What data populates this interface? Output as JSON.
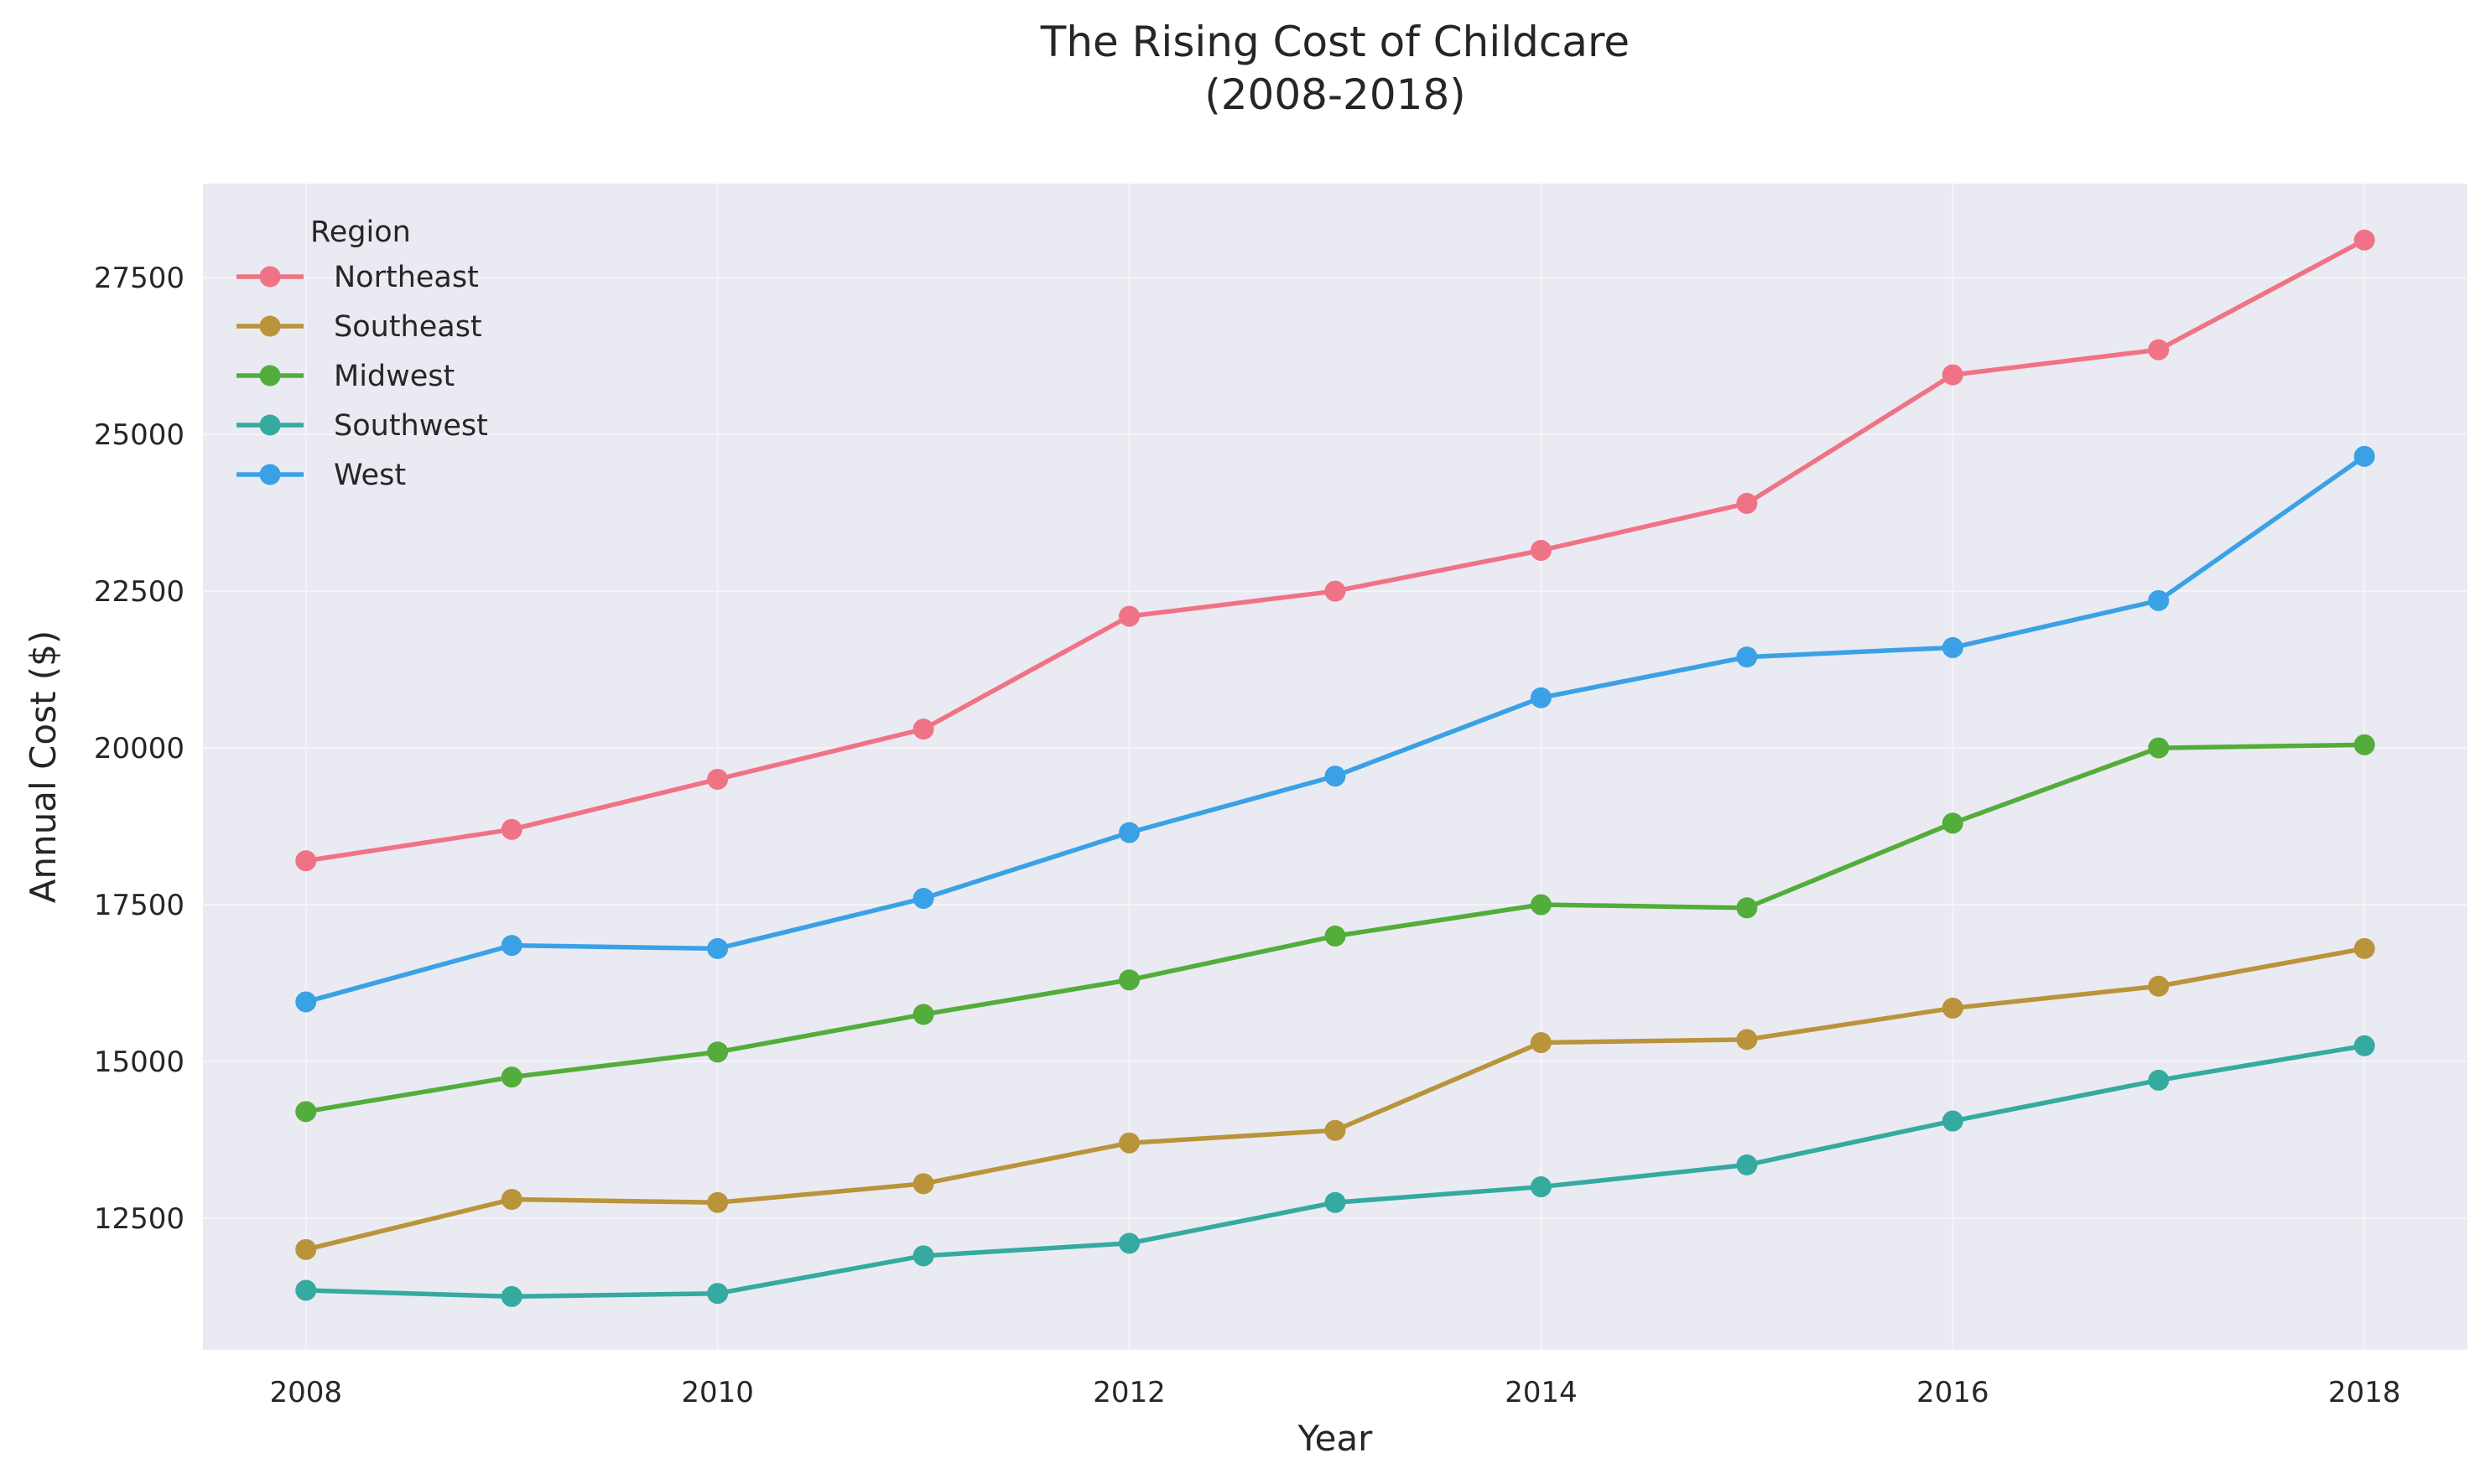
{
  "chart_data": {
    "type": "line",
    "title": "The Rising Cost of Childcare\n(2008-2018)",
    "xlabel": "Year",
    "ylabel": "Annual Cost ($)",
    "x": [
      2008,
      2009,
      2010,
      2011,
      2012,
      2013,
      2014,
      2015,
      2016,
      2017,
      2018
    ],
    "xlim": [
      2007.5,
      2018.5
    ],
    "ylim": [
      10400,
      29000
    ],
    "x_ticks": [
      2008,
      2010,
      2012,
      2014,
      2016,
      2018
    ],
    "y_ticks": [
      12500,
      15000,
      17500,
      20000,
      22500,
      25000,
      27500
    ],
    "grid": true,
    "legend": {
      "title": "Region",
      "placement": "top-left"
    },
    "series": [
      {
        "name": "Northeast",
        "color": "#f07385",
        "marker": "circle",
        "values": [
          18200,
          18700,
          19500,
          20300,
          22100,
          22500,
          23150,
          23900,
          25950,
          26350,
          28100
        ]
      },
      {
        "name": "Southeast",
        "color": "#b9943a",
        "marker": "circle",
        "values": [
          12000,
          12800,
          12750,
          13050,
          13700,
          13900,
          15300,
          15350,
          15850,
          16200,
          16800
        ]
      },
      {
        "name": "Midwest",
        "color": "#52ad3a",
        "marker": "circle",
        "values": [
          14200,
          14750,
          15150,
          15750,
          16300,
          17000,
          17500,
          17450,
          18800,
          20000,
          20050
        ]
      },
      {
        "name": "Southwest",
        "color": "#35aaa0",
        "marker": "circle",
        "values": [
          11350,
          11250,
          11300,
          11900,
          12100,
          12750,
          13000,
          13350,
          14050,
          14700,
          15250
        ]
      },
      {
        "name": "West",
        "color": "#3ba1e6",
        "marker": "circle",
        "values": [
          15950,
          16850,
          16800,
          17600,
          18650,
          19550,
          20800,
          21450,
          21600,
          22350,
          24650
        ]
      }
    ]
  },
  "colors": {
    "plot_background": "#eaeaf2",
    "grid": "#f5f5f8",
    "text": "#262626"
  }
}
